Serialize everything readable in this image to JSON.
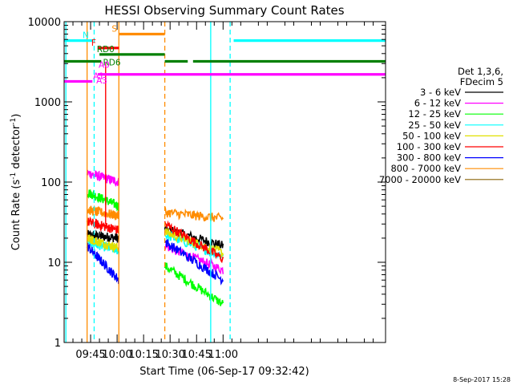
{
  "chart_data": {
    "type": "line",
    "title": "HESSI Observing Summary Count Rates",
    "xlabel_prefix": "Start Time (",
    "xlabel_date": "06-Sep-17 09:32:42",
    "xlabel_suffix": ")",
    "ylabel": "Count Rate (s",
    "ylabel_sup": "-1",
    "ylabel_mid": " detector",
    "ylabel_end": ")",
    "y_scale": "log",
    "ylim": [
      1,
      10000
    ],
    "y_ticks": [
      {
        "value": 1,
        "label": "1"
      },
      {
        "value": 10,
        "label": "10"
      },
      {
        "value": 100,
        "label": "100"
      },
      {
        "value": 1000,
        "label": "1000"
      },
      {
        "value": 10000,
        "label": "10000"
      }
    ],
    "x_range_min": [
      570,
      752
    ],
    "x_ticks": [
      {
        "value": 585,
        "label": "09:45"
      },
      {
        "value": 600,
        "label": "10:00"
      },
      {
        "value": 615,
        "label": "10:15"
      },
      {
        "value": 630,
        "label": "10:30"
      },
      {
        "value": 645,
        "label": "10:45"
      },
      {
        "value": 660,
        "label": "11:00"
      }
    ],
    "legend": {
      "placement": "right",
      "header": [
        "Det 1,3,6,",
        "FDecim 5"
      ],
      "entries": [
        {
          "label": "3 - 6 keV",
          "color": "#000000"
        },
        {
          "label": "6 - 12 keV",
          "color": "#ff00ff"
        },
        {
          "label": "12 - 25 keV",
          "color": "#00ff00"
        },
        {
          "label": "25 - 50 keV",
          "color": "#00ffff"
        },
        {
          "label": "50 - 100 keV",
          "color": "#e0e000"
        },
        {
          "label": "100 - 300 keV",
          "color": "#ff0000"
        },
        {
          "label": "300 - 800 keV",
          "color": "#0000ff"
        },
        {
          "label": "800 - 7000 keV",
          "color": "#ff8c00"
        },
        {
          "label": "7000 - 20000 keV",
          "color": "#8b6508"
        }
      ]
    },
    "flags": [
      {
        "label": "N",
        "color": "#00ffff",
        "y": 5800,
        "segments": [
          [
            570,
            586
          ],
          [
            666,
            752
          ]
        ]
      },
      {
        "label": "S",
        "color": "#ff8c00",
        "y": 7000,
        "segments": [
          [
            601,
            627
          ]
        ]
      },
      {
        "label": "F",
        "color": "#ff0000",
        "y": 4700,
        "segments": [
          [
            589,
            601
          ]
        ]
      },
      {
        "label": "RD0",
        "color": "#008000",
        "y": 3900,
        "segments": [
          [
            590,
            627
          ]
        ]
      },
      {
        "label": "RD6",
        "color": "#008000",
        "y": 3200,
        "segments": [
          [
            570,
            591
          ],
          [
            627,
            640
          ],
          [
            643,
            752
          ]
        ]
      },
      {
        "label": "A0",
        "color": "#ff00ff",
        "y": 2600,
        "segments": []
      },
      {
        "label": "A1",
        "color": "#ff00ff",
        "y": 1800,
        "segments": [
          [
            570,
            586
          ]
        ]
      },
      {
        "label": "A3",
        "color": "#ff00ff",
        "y": 2200,
        "segments": [
          [
            589,
            752
          ]
        ]
      }
    ],
    "vlines": [
      {
        "x": 571,
        "color": "#00ffff",
        "style": "solid"
      },
      {
        "x": 583,
        "color": "#ff8c00",
        "style": "solid"
      },
      {
        "x": 587,
        "color": "#00ffff",
        "style": "dashed"
      },
      {
        "x": 601,
        "color": "#ff8c00",
        "style": "solid"
      },
      {
        "x": 627,
        "color": "#ff8c00",
        "style": "dashed"
      },
      {
        "x": 653,
        "color": "#00ffff",
        "style": "solid"
      },
      {
        "x": 664,
        "color": "#00ffff",
        "style": "dashed"
      }
    ],
    "data_intervals": [
      [
        583,
        601
      ],
      [
        627,
        660
      ]
    ],
    "series": [
      {
        "name": "3 - 6 keV",
        "color": "#000000",
        "seg1": [
          22,
          20
        ],
        "seg2": [
          26,
          16
        ]
      },
      {
        "name": "6 - 12 keV",
        "color": "#ff00ff",
        "seg1": [
          130,
          100
        ],
        "seg2": [
          16,
          8
        ]
      },
      {
        "name": "12 - 25 keV",
        "color": "#00ff00",
        "seg1": [
          75,
          50
        ],
        "seg2": [
          9,
          3
        ]
      },
      {
        "name": "25 - 50 keV",
        "color": "#00ffff",
        "seg1": [
          18,
          14
        ],
        "seg2": [
          22,
          12
        ]
      },
      {
        "name": "50 - 100 keV",
        "color": "#e0e000",
        "seg1": [
          20,
          15
        ],
        "seg2": [
          24,
          13
        ]
      },
      {
        "name": "100 - 300 keV",
        "color": "#ff0000",
        "seg1": [
          32,
          25
        ],
        "seg2": [
          30,
          11
        ]
      },
      {
        "name": "300 - 800 keV",
        "color": "#0000ff",
        "seg1": [
          16,
          6
        ],
        "seg2": [
          18,
          6
        ]
      },
      {
        "name": "800 - 7000 keV",
        "color": "#ff8c00",
        "seg1": [
          45,
          38
        ],
        "seg2": [
          42,
          35
        ]
      }
    ],
    "footer_timestamp": "8-Sep-2017 15:28"
  }
}
